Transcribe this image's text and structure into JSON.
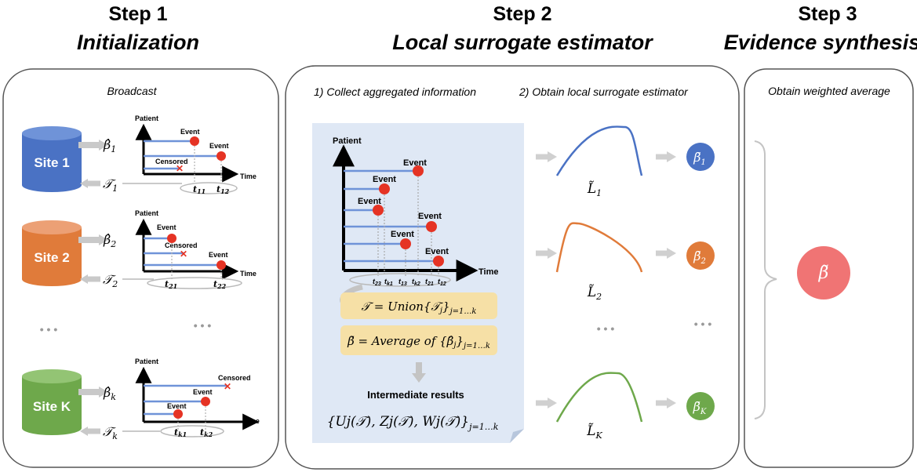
{
  "steps": [
    {
      "label": "Step 1",
      "title": "Initialization"
    },
    {
      "label": "Step 2",
      "title": "Local surrogate estimator"
    },
    {
      "label": "Step 3",
      "title": "Evidence synthesis"
    }
  ],
  "step1": {
    "caption": "Broadcast",
    "axis_y": "Patient",
    "axis_x": "Time",
    "ellipsis": "• • •",
    "sites": [
      {
        "label": "Site 1",
        "color": "#4a72c4",
        "top_color": "#6f93d8",
        "beta": "β̂",
        "beta_sub": "1",
        "t_label": "𝒯",
        "t_sub": "1",
        "events": [
          "Event",
          "Event"
        ],
        "censored": "Censored",
        "ticks": [
          {
            "base": "t",
            "sub": "11"
          },
          {
            "base": "t",
            "sub": "12"
          }
        ]
      },
      {
        "label": "Site 2",
        "color": "#e07b3a",
        "top_color": "#eca075",
        "beta": "β̂",
        "beta_sub": "2",
        "t_label": "𝒯",
        "t_sub": "2",
        "events": [
          "Event",
          "Event"
        ],
        "censored": "Censored",
        "ticks": [
          {
            "base": "t",
            "sub": "21"
          },
          {
            "base": "t",
            "sub": "22"
          }
        ]
      },
      {
        "label": "Site K",
        "color": "#6ea84b",
        "top_color": "#93c474",
        "beta": "β̂",
        "beta_sub": "k",
        "t_label": "𝒯",
        "t_sub": "k",
        "events": [
          "Event",
          "Event"
        ],
        "censored": "Censored",
        "ticks": [
          {
            "base": "t",
            "sub": "k1"
          },
          {
            "base": "t",
            "sub": "k2"
          }
        ]
      }
    ]
  },
  "step2": {
    "caption1": "1) Collect aggregated information",
    "caption2": "2) Obtain local surrogate estimator",
    "axis_y": "Patient",
    "axis_x": "Time",
    "events": [
      "Event",
      "Event",
      "Event",
      "Event",
      "Event",
      "Event"
    ],
    "ticks": [
      {
        "base": "t",
        "sub": "23"
      },
      {
        "base": "t",
        "sub": "k1"
      },
      {
        "base": "t",
        "sub": "13"
      },
      {
        "base": "t",
        "sub": "k2"
      },
      {
        "base": "t",
        "sub": "21"
      },
      {
        "base": "t",
        "sub": "12"
      }
    ],
    "union_formula": "𝒯 = Union{𝒯",
    "union_formula_mid": "j",
    "union_formula_end": "}",
    "union_formula_sub": "j=1…k",
    "average_formula": "β̃ = Average of {β̂",
    "average_formula_mid": "j",
    "average_formula_end": "}",
    "average_formula_sub": "j=1…k",
    "intermediate_label": "Intermediate results",
    "intermediate_formula": "{U",
    "intermediate_formula_full": "{Uj(𝒯), Zj(𝒯), Wj(𝒯)}",
    "intermediate_sub": "j=1…k",
    "surrogates": [
      {
        "label": "L̃",
        "sub": "1",
        "color": "#4a72c4",
        "beta": "β̃",
        "beta_sub": "1"
      },
      {
        "label": "L̃",
        "sub": "2",
        "color": "#e07b3a",
        "beta": "β̃",
        "beta_sub": "2"
      },
      {
        "label": "L̃",
        "sub": "K",
        "color": "#6ea84b",
        "beta": "β̃",
        "beta_sub": "K"
      }
    ],
    "ellipsis": "• • •"
  },
  "step3": {
    "caption": "Obtain weighted average",
    "result": "β̃",
    "result_color": "#f07474"
  },
  "colors": {
    "panel_border": "#555555",
    "arrow_gray": "#cfcfcf",
    "timeline_blue": "#6f93d8",
    "event_red": "#e53324",
    "formula_box": "#f6e0a6",
    "note_bg": "#dfe8f5"
  }
}
